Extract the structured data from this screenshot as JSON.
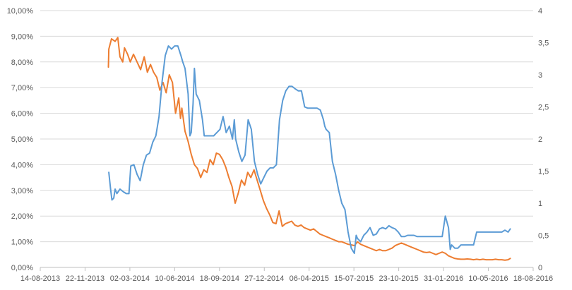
{
  "chart_data": {
    "type": "line",
    "title": "",
    "xlabel": "",
    "ylabel": "",
    "grid": true,
    "legend": "none",
    "x_ticks": [
      "14-08-2013",
      "22-11-2013",
      "02-03-2014",
      "10-06-2014",
      "18-09-2014",
      "27-12-2014",
      "06-04-2015",
      "15-07-2015",
      "23-10-2015",
      "31-01-2016",
      "10-05-2016",
      "18-08-2016"
    ],
    "x_range": [
      "2013-08-14",
      "2016-08-18"
    ],
    "y_left": {
      "ticks": [
        "0,00%",
        "1,00%",
        "2,00%",
        "3,00%",
        "4,00%",
        "5,00%",
        "6,00%",
        "7,00%",
        "8,00%",
        "9,00%",
        "10,00%"
      ],
      "range": [
        0,
        10
      ]
    },
    "y_right": {
      "ticks": [
        "0",
        "0,5",
        "1",
        "1,5",
        "2",
        "2,5",
        "3",
        "3,5",
        "4"
      ],
      "range": [
        0,
        4
      ]
    },
    "series": [
      {
        "color": "#ED7D31",
        "axis": "left",
        "points": [
          [
            "2014-01-13",
            7.8
          ],
          [
            "2014-01-14",
            8.5
          ],
          [
            "2014-01-20",
            8.9
          ],
          [
            "2014-01-28",
            8.8
          ],
          [
            "2014-02-03",
            8.95
          ],
          [
            "2014-02-08",
            8.2
          ],
          [
            "2014-02-14",
            8.0
          ],
          [
            "2014-02-18",
            8.55
          ],
          [
            "2014-02-25",
            8.3
          ],
          [
            "2014-03-03",
            8.0
          ],
          [
            "2014-03-10",
            8.3
          ],
          [
            "2014-03-18",
            8.0
          ],
          [
            "2014-03-26",
            7.7
          ],
          [
            "2014-04-03",
            8.2
          ],
          [
            "2014-04-10",
            7.6
          ],
          [
            "2014-04-17",
            7.9
          ],
          [
            "2014-04-24",
            7.6
          ],
          [
            "2014-05-01",
            7.4
          ],
          [
            "2014-05-08",
            6.9
          ],
          [
            "2014-05-15",
            7.2
          ],
          [
            "2014-05-22",
            6.8
          ],
          [
            "2014-05-29",
            7.5
          ],
          [
            "2014-06-05",
            7.2
          ],
          [
            "2014-06-12",
            6.0
          ],
          [
            "2014-06-19",
            6.6
          ],
          [
            "2014-06-23",
            5.8
          ],
          [
            "2014-06-26",
            6.2
          ],
          [
            "2014-07-03",
            5.3
          ],
          [
            "2014-07-10",
            4.9
          ],
          [
            "2014-07-17",
            4.4
          ],
          [
            "2014-07-24",
            4.0
          ],
          [
            "2014-07-31",
            3.85
          ],
          [
            "2014-08-07",
            3.5
          ],
          [
            "2014-08-14",
            3.8
          ],
          [
            "2014-08-21",
            3.7
          ],
          [
            "2014-08-28",
            4.2
          ],
          [
            "2014-09-04",
            4.0
          ],
          [
            "2014-09-11",
            4.45
          ],
          [
            "2014-09-18",
            4.4
          ],
          [
            "2014-09-25",
            4.2
          ],
          [
            "2014-10-02",
            3.9
          ],
          [
            "2014-10-09",
            3.5
          ],
          [
            "2014-10-16",
            3.15
          ],
          [
            "2014-10-23",
            2.5
          ],
          [
            "2014-10-30",
            2.9
          ],
          [
            "2014-11-06",
            3.4
          ],
          [
            "2014-11-13",
            3.2
          ],
          [
            "2014-11-20",
            3.7
          ],
          [
            "2014-11-27",
            3.5
          ],
          [
            "2014-12-04",
            3.8
          ],
          [
            "2014-12-11",
            3.4
          ],
          [
            "2014-12-18",
            3.0
          ],
          [
            "2014-12-25",
            2.6
          ],
          [
            "2015-01-01",
            2.3
          ],
          [
            "2015-01-08",
            2.05
          ],
          [
            "2015-01-15",
            1.75
          ],
          [
            "2015-01-22",
            1.7
          ],
          [
            "2015-01-29",
            2.2
          ],
          [
            "2015-02-05",
            1.6
          ],
          [
            "2015-02-12",
            1.7
          ],
          [
            "2015-02-19",
            1.75
          ],
          [
            "2015-02-26",
            1.8
          ],
          [
            "2015-03-05",
            1.65
          ],
          [
            "2015-03-12",
            1.6
          ],
          [
            "2015-03-19",
            1.65
          ],
          [
            "2015-03-26",
            1.55
          ],
          [
            "2015-04-02",
            1.5
          ],
          [
            "2015-04-09",
            1.45
          ],
          [
            "2015-04-16",
            1.5
          ],
          [
            "2015-04-23",
            1.4
          ],
          [
            "2015-04-30",
            1.3
          ],
          [
            "2015-05-07",
            1.25
          ],
          [
            "2015-05-14",
            1.2
          ],
          [
            "2015-05-21",
            1.15
          ],
          [
            "2015-05-28",
            1.1
          ],
          [
            "2015-06-04",
            1.05
          ],
          [
            "2015-06-11",
            1.0
          ],
          [
            "2015-06-18",
            1.0
          ],
          [
            "2015-06-25",
            0.95
          ],
          [
            "2015-07-02",
            0.9
          ],
          [
            "2015-07-09",
            0.88
          ],
          [
            "2015-07-16",
            0.85
          ],
          [
            "2015-07-23",
            1.0
          ],
          [
            "2015-07-30",
            0.9
          ],
          [
            "2015-08-06",
            0.85
          ],
          [
            "2015-08-13",
            0.8
          ],
          [
            "2015-08-20",
            0.75
          ],
          [
            "2015-08-27",
            0.7
          ],
          [
            "2015-09-03",
            0.65
          ],
          [
            "2015-09-10",
            0.7
          ],
          [
            "2015-09-17",
            0.65
          ],
          [
            "2015-09-24",
            0.65
          ],
          [
            "2015-10-01",
            0.7
          ],
          [
            "2015-10-08",
            0.75
          ],
          [
            "2015-10-15",
            0.85
          ],
          [
            "2015-10-22",
            0.9
          ],
          [
            "2015-10-29",
            0.95
          ],
          [
            "2015-11-05",
            0.9
          ],
          [
            "2015-11-12",
            0.85
          ],
          [
            "2015-11-19",
            0.8
          ],
          [
            "2015-11-26",
            0.75
          ],
          [
            "2015-12-03",
            0.7
          ],
          [
            "2015-12-10",
            0.65
          ],
          [
            "2015-12-17",
            0.6
          ],
          [
            "2015-12-24",
            0.58
          ],
          [
            "2015-12-31",
            0.6
          ],
          [
            "2016-01-07",
            0.55
          ],
          [
            "2016-01-14",
            0.5
          ],
          [
            "2016-01-21",
            0.55
          ],
          [
            "2016-01-28",
            0.6
          ],
          [
            "2016-02-04",
            0.55
          ],
          [
            "2016-02-11",
            0.45
          ],
          [
            "2016-02-18",
            0.4
          ],
          [
            "2016-02-25",
            0.35
          ],
          [
            "2016-03-03",
            0.33
          ],
          [
            "2016-03-10",
            0.32
          ],
          [
            "2016-03-17",
            0.32
          ],
          [
            "2016-03-24",
            0.33
          ],
          [
            "2016-03-31",
            0.32
          ],
          [
            "2016-04-07",
            0.3
          ],
          [
            "2016-04-14",
            0.32
          ],
          [
            "2016-04-21",
            0.3
          ],
          [
            "2016-04-28",
            0.32
          ],
          [
            "2016-05-05",
            0.3
          ],
          [
            "2016-05-12",
            0.3
          ],
          [
            "2016-05-19",
            0.3
          ],
          [
            "2016-05-26",
            0.32
          ],
          [
            "2016-06-02",
            0.3
          ],
          [
            "2016-06-09",
            0.3
          ],
          [
            "2016-06-16",
            0.28
          ],
          [
            "2016-06-23",
            0.3
          ],
          [
            "2016-06-28",
            0.35
          ]
        ]
      },
      {
        "color": "#5B9BD5",
        "axis": "right",
        "points": [
          [
            "2014-01-14",
            1.48
          ],
          [
            "2014-01-18",
            1.22
          ],
          [
            "2014-01-21",
            1.05
          ],
          [
            "2014-01-25",
            1.08
          ],
          [
            "2014-01-28",
            1.22
          ],
          [
            "2014-02-01",
            1.15
          ],
          [
            "2014-02-08",
            1.22
          ],
          [
            "2014-02-15",
            1.18
          ],
          [
            "2014-02-22",
            1.15
          ],
          [
            "2014-02-28",
            1.15
          ],
          [
            "2014-03-04",
            1.58
          ],
          [
            "2014-03-11",
            1.6
          ],
          [
            "2014-03-18",
            1.45
          ],
          [
            "2014-03-25",
            1.35
          ],
          [
            "2014-04-01",
            1.6
          ],
          [
            "2014-04-08",
            1.75
          ],
          [
            "2014-04-15",
            1.78
          ],
          [
            "2014-04-22",
            1.95
          ],
          [
            "2014-04-29",
            2.05
          ],
          [
            "2014-05-06",
            2.35
          ],
          [
            "2014-05-13",
            2.9
          ],
          [
            "2014-05-20",
            3.3
          ],
          [
            "2014-05-27",
            3.45
          ],
          [
            "2014-06-03",
            3.4
          ],
          [
            "2014-06-10",
            3.45
          ],
          [
            "2014-06-17",
            3.45
          ],
          [
            "2014-06-24",
            3.3
          ],
          [
            "2014-06-28",
            3.2
          ],
          [
            "2014-07-03",
            3.1
          ],
          [
            "2014-07-10",
            2.7
          ],
          [
            "2014-07-14",
            2.05
          ],
          [
            "2014-07-17",
            2.1
          ],
          [
            "2014-07-21",
            2.55
          ],
          [
            "2014-07-24",
            3.1
          ],
          [
            "2014-07-28",
            2.7
          ],
          [
            "2014-08-04",
            2.6
          ],
          [
            "2014-08-11",
            2.3
          ],
          [
            "2014-08-15",
            2.05
          ],
          [
            "2014-08-22",
            2.05
          ],
          [
            "2014-08-29",
            2.05
          ],
          [
            "2014-09-05",
            2.05
          ],
          [
            "2014-09-12",
            2.1
          ],
          [
            "2014-09-19",
            2.15
          ],
          [
            "2014-09-26",
            2.35
          ],
          [
            "2014-10-03",
            2.1
          ],
          [
            "2014-10-10",
            2.2
          ],
          [
            "2014-10-17",
            2.0
          ],
          [
            "2014-10-21",
            2.3
          ],
          [
            "2014-10-24",
            2.0
          ],
          [
            "2014-10-31",
            1.8
          ],
          [
            "2014-11-07",
            1.65
          ],
          [
            "2014-11-14",
            1.75
          ],
          [
            "2014-11-21",
            2.3
          ],
          [
            "2014-11-28",
            2.15
          ],
          [
            "2014-12-05",
            1.65
          ],
          [
            "2014-12-12",
            1.45
          ],
          [
            "2014-12-19",
            1.3
          ],
          [
            "2014-12-26",
            1.4
          ],
          [
            "2015-01-02",
            1.5
          ],
          [
            "2015-01-09",
            1.55
          ],
          [
            "2015-01-16",
            1.55
          ],
          [
            "2015-01-23",
            1.6
          ],
          [
            "2015-01-30",
            2.3
          ],
          [
            "2015-02-06",
            2.6
          ],
          [
            "2015-02-13",
            2.75
          ],
          [
            "2015-02-20",
            2.82
          ],
          [
            "2015-02-27",
            2.82
          ],
          [
            "2015-03-06",
            2.78
          ],
          [
            "2015-03-13",
            2.75
          ],
          [
            "2015-03-20",
            2.75
          ],
          [
            "2015-03-27",
            2.5
          ],
          [
            "2015-04-03",
            2.48
          ],
          [
            "2015-04-10",
            2.48
          ],
          [
            "2015-04-17",
            2.48
          ],
          [
            "2015-04-24",
            2.48
          ],
          [
            "2015-05-01",
            2.45
          ],
          [
            "2015-05-08",
            2.3
          ],
          [
            "2015-05-11",
            2.2
          ],
          [
            "2015-05-14",
            2.15
          ],
          [
            "2015-05-21",
            2.1
          ],
          [
            "2015-05-28",
            1.65
          ],
          [
            "2015-06-04",
            1.45
          ],
          [
            "2015-06-11",
            1.2
          ],
          [
            "2015-06-18",
            1.0
          ],
          [
            "2015-06-25",
            0.9
          ],
          [
            "2015-07-02",
            0.55
          ],
          [
            "2015-07-09",
            0.3
          ],
          [
            "2015-07-16",
            0.22
          ],
          [
            "2015-07-20",
            0.5
          ],
          [
            "2015-07-23",
            0.45
          ],
          [
            "2015-07-30",
            0.4
          ],
          [
            "2015-08-06",
            0.5
          ],
          [
            "2015-08-13",
            0.55
          ],
          [
            "2015-08-20",
            0.62
          ],
          [
            "2015-08-27",
            0.5
          ],
          [
            "2015-09-03",
            0.52
          ],
          [
            "2015-09-10",
            0.6
          ],
          [
            "2015-09-17",
            0.62
          ],
          [
            "2015-09-24",
            0.6
          ],
          [
            "2015-10-01",
            0.65
          ],
          [
            "2015-10-08",
            0.62
          ],
          [
            "2015-10-15",
            0.6
          ],
          [
            "2015-10-22",
            0.55
          ],
          [
            "2015-10-29",
            0.48
          ],
          [
            "2015-11-05",
            0.48
          ],
          [
            "2015-11-12",
            0.5
          ],
          [
            "2015-11-19",
            0.5
          ],
          [
            "2015-11-26",
            0.5
          ],
          [
            "2015-12-03",
            0.48
          ],
          [
            "2015-12-10",
            0.48
          ],
          [
            "2015-12-17",
            0.48
          ],
          [
            "2015-12-24",
            0.48
          ],
          [
            "2015-12-31",
            0.48
          ],
          [
            "2016-01-07",
            0.48
          ],
          [
            "2016-01-14",
            0.48
          ],
          [
            "2016-01-21",
            0.48
          ],
          [
            "2016-01-28",
            0.48
          ],
          [
            "2016-02-04",
            0.8
          ],
          [
            "2016-02-11",
            0.62
          ],
          [
            "2016-02-15",
            0.28
          ],
          [
            "2016-02-18",
            0.35
          ],
          [
            "2016-02-25",
            0.3
          ],
          [
            "2016-03-03",
            0.3
          ],
          [
            "2016-03-10",
            0.35
          ],
          [
            "2016-03-17",
            0.35
          ],
          [
            "2016-03-24",
            0.35
          ],
          [
            "2016-03-31",
            0.35
          ],
          [
            "2016-04-07",
            0.35
          ],
          [
            "2016-04-14",
            0.55
          ],
          [
            "2016-04-21",
            0.55
          ],
          [
            "2016-04-28",
            0.55
          ],
          [
            "2016-05-05",
            0.55
          ],
          [
            "2016-05-12",
            0.55
          ],
          [
            "2016-05-19",
            0.55
          ],
          [
            "2016-05-26",
            0.55
          ],
          [
            "2016-06-02",
            0.55
          ],
          [
            "2016-06-09",
            0.55
          ],
          [
            "2016-06-16",
            0.58
          ],
          [
            "2016-06-23",
            0.55
          ],
          [
            "2016-06-28",
            0.6
          ]
        ]
      }
    ]
  }
}
